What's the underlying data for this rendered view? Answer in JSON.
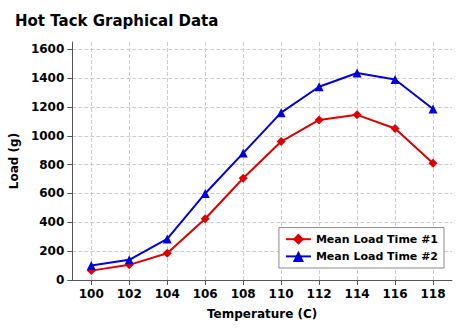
{
  "chart_data": {
    "type": "line",
    "title": "Hot Tack Graphical Data",
    "xlabel": "Temperature (C)",
    "ylabel": "Load (g)",
    "x": [
      100,
      102,
      104,
      106,
      108,
      110,
      112,
      114,
      116,
      118
    ],
    "series": [
      {
        "name": "Mean Load Time #1",
        "color": "#dd0000",
        "marker": "diamond",
        "values": [
          65,
          105,
          185,
          425,
          705,
          960,
          1110,
          1145,
          1050,
          810
        ]
      },
      {
        "name": "Mean Load Time #2",
        "color": "#0000dd",
        "marker": "triangle",
        "values": [
          100,
          140,
          285,
          600,
          880,
          1160,
          1340,
          1435,
          1390,
          1185
        ]
      }
    ],
    "xlim": [
      99,
      119
    ],
    "xticks": [
      100,
      102,
      104,
      106,
      108,
      110,
      112,
      114,
      116,
      118
    ],
    "ylim": [
      0,
      1650
    ],
    "yticks": [
      0,
      200,
      400,
      600,
      800,
      1000,
      1200,
      1400,
      1600
    ],
    "grid": true,
    "legend": "lower right"
  }
}
